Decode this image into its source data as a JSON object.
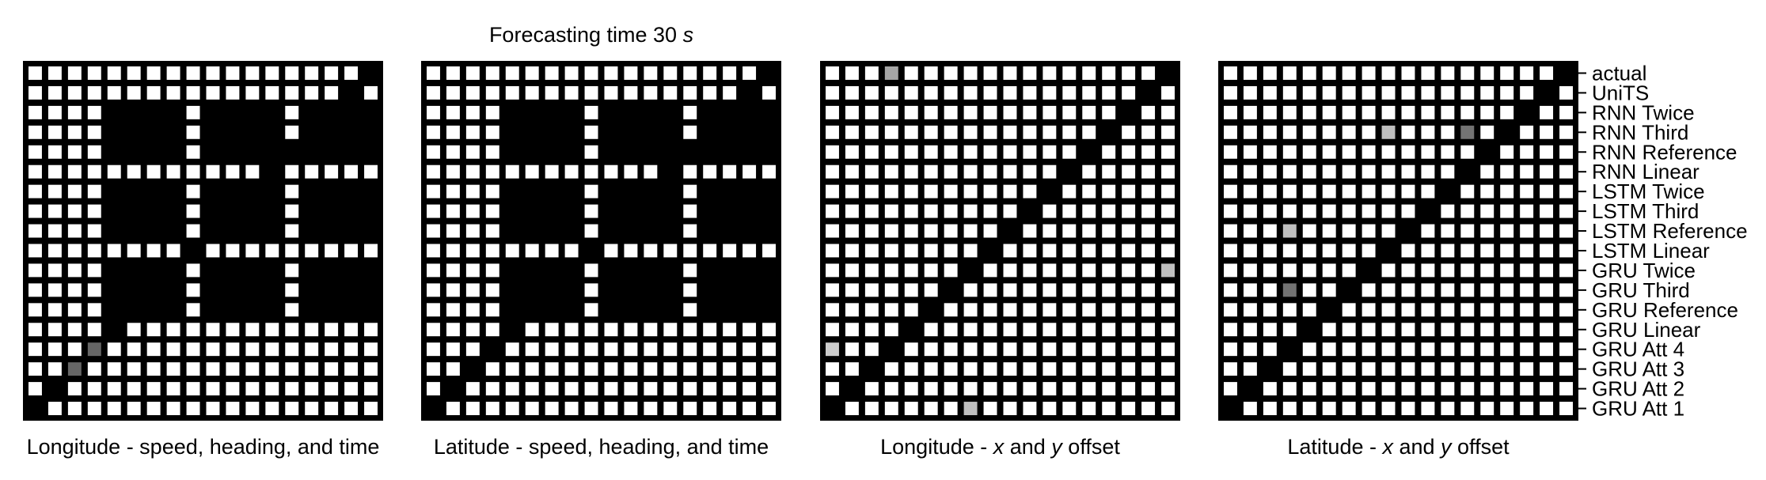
{
  "chart_data": {
    "type": "heatmap",
    "title": "Forecasting time 30 s",
    "title_prefix": "Forecasting time 30",
    "title_unit": "s",
    "row_labels_top_to_bottom": [
      "actual",
      "UniTS",
      "RNN Twice",
      "RNN Third",
      "RNN Reference",
      "RNN Linear",
      "LSTM Twice",
      "LSTM Third",
      "LSTM Reference",
      "LSTM Linear",
      "GRU Twice",
      "GRU Third",
      "GRU Reference",
      "GRU Linear",
      "GRU Att 4",
      "GRU Att 3",
      "GRU Att 2",
      "GRU Att 1"
    ],
    "column_order": "GRU Att 1 (left) ... actual (right)",
    "cell_scale": "0 = no difference (white), 1 = significant difference (black); grey = intermediate",
    "panels": [
      {
        "title": "Longitude - speed, heading, and time",
        "type": "heatmap",
        "black_blocks": [
          [
            2,
            4,
            4,
            7
          ],
          [
            2,
            4,
            9,
            12
          ],
          [
            2,
            4,
            14,
            17
          ],
          [
            6,
            8,
            4,
            7
          ],
          [
            6,
            8,
            9,
            12
          ],
          [
            6,
            8,
            14,
            17
          ],
          [
            10,
            12,
            4,
            7
          ],
          [
            10,
            12,
            9,
            12
          ],
          [
            10,
            12,
            14,
            17
          ]
        ],
        "grey_cells": [
          [
            14,
            3,
            0.6
          ],
          [
            15,
            2,
            0.6
          ]
        ]
      },
      {
        "title": "Latitude - speed, heading, and time",
        "type": "heatmap",
        "black_blocks": [
          [
            2,
            4,
            4,
            7
          ],
          [
            2,
            4,
            9,
            12
          ],
          [
            2,
            4,
            14,
            17
          ],
          [
            6,
            8,
            4,
            7
          ],
          [
            6,
            8,
            9,
            12
          ],
          [
            6,
            8,
            14,
            17
          ],
          [
            10,
            12,
            4,
            7
          ],
          [
            10,
            12,
            9,
            12
          ],
          [
            10,
            12,
            14,
            17
          ]
        ],
        "grey_cells": []
      },
      {
        "title": "Longitude - x and y offset",
        "title_parts": [
          "Longitude - ",
          "x",
          " and ",
          "y",
          " offset"
        ],
        "type": "heatmap",
        "black_blocks": [],
        "grey_cells": [
          [
            0,
            3,
            0.35
          ],
          [
            10,
            17,
            0.25
          ],
          [
            17,
            7,
            0.25
          ],
          [
            14,
            0,
            0.2
          ]
        ]
      },
      {
        "title": "Latitude - x and y offset",
        "title_parts": [
          "Latitude - ",
          "x",
          " and ",
          "y",
          " offset"
        ],
        "type": "heatmap",
        "black_blocks": [],
        "grey_cells": [
          [
            3,
            12,
            0.55
          ],
          [
            3,
            8,
            0.25
          ],
          [
            8,
            3,
            0.25
          ],
          [
            11,
            3,
            0.55
          ]
        ]
      }
    ],
    "colors": {
      "black": "#000000",
      "white": "#ffffff"
    }
  }
}
